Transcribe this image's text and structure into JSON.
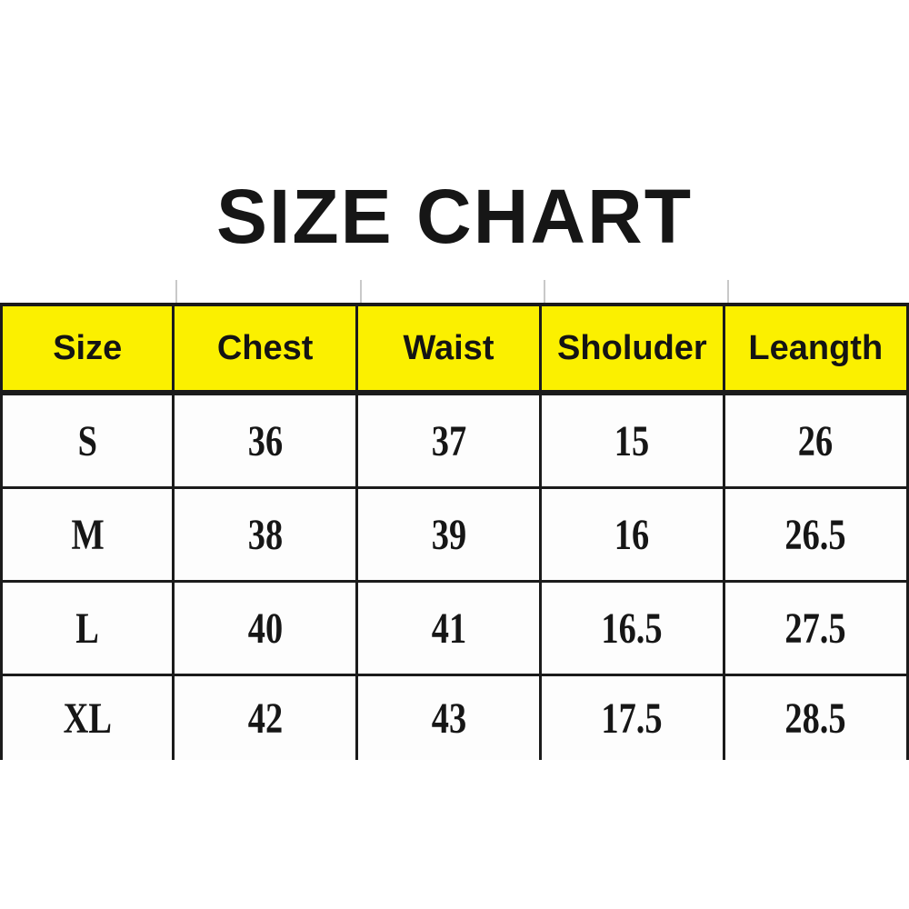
{
  "title": "SIZE CHART",
  "table": {
    "headers": [
      "Size",
      "Chest",
      "Waist",
      "Sholuder",
      "Leangth"
    ],
    "rows": [
      {
        "cells": [
          "S",
          "36",
          "37",
          "15",
          "26"
        ]
      },
      {
        "cells": [
          "M",
          "38",
          "39",
          "16",
          "26.5"
        ]
      },
      {
        "cells": [
          "L",
          "40",
          "41",
          "16.5",
          "27.5"
        ]
      },
      {
        "cells": [
          "XL",
          "42",
          "43",
          "17.5",
          "28.5"
        ]
      }
    ]
  },
  "colors": {
    "header_background": "#fbf000",
    "row_background": "#fdfdfd",
    "border": "#1b1b1b",
    "text": "#161616"
  },
  "chart_data": {
    "type": "table",
    "title": "SIZE CHART",
    "columns": [
      "Size",
      "Chest",
      "Waist",
      "Sholuder",
      "Leangth"
    ],
    "rows": [
      [
        "S",
        36,
        37,
        15,
        26
      ],
      [
        "M",
        38,
        39,
        16,
        26.5
      ],
      [
        "L",
        40,
        41,
        16.5,
        27.5
      ],
      [
        "XL",
        42,
        43,
        17.5,
        28.5
      ]
    ],
    "layout": {
      "header_fill": "yellow",
      "grid": "black borders, bottom edge of table cropped off",
      "title_position": "top-center"
    }
  }
}
